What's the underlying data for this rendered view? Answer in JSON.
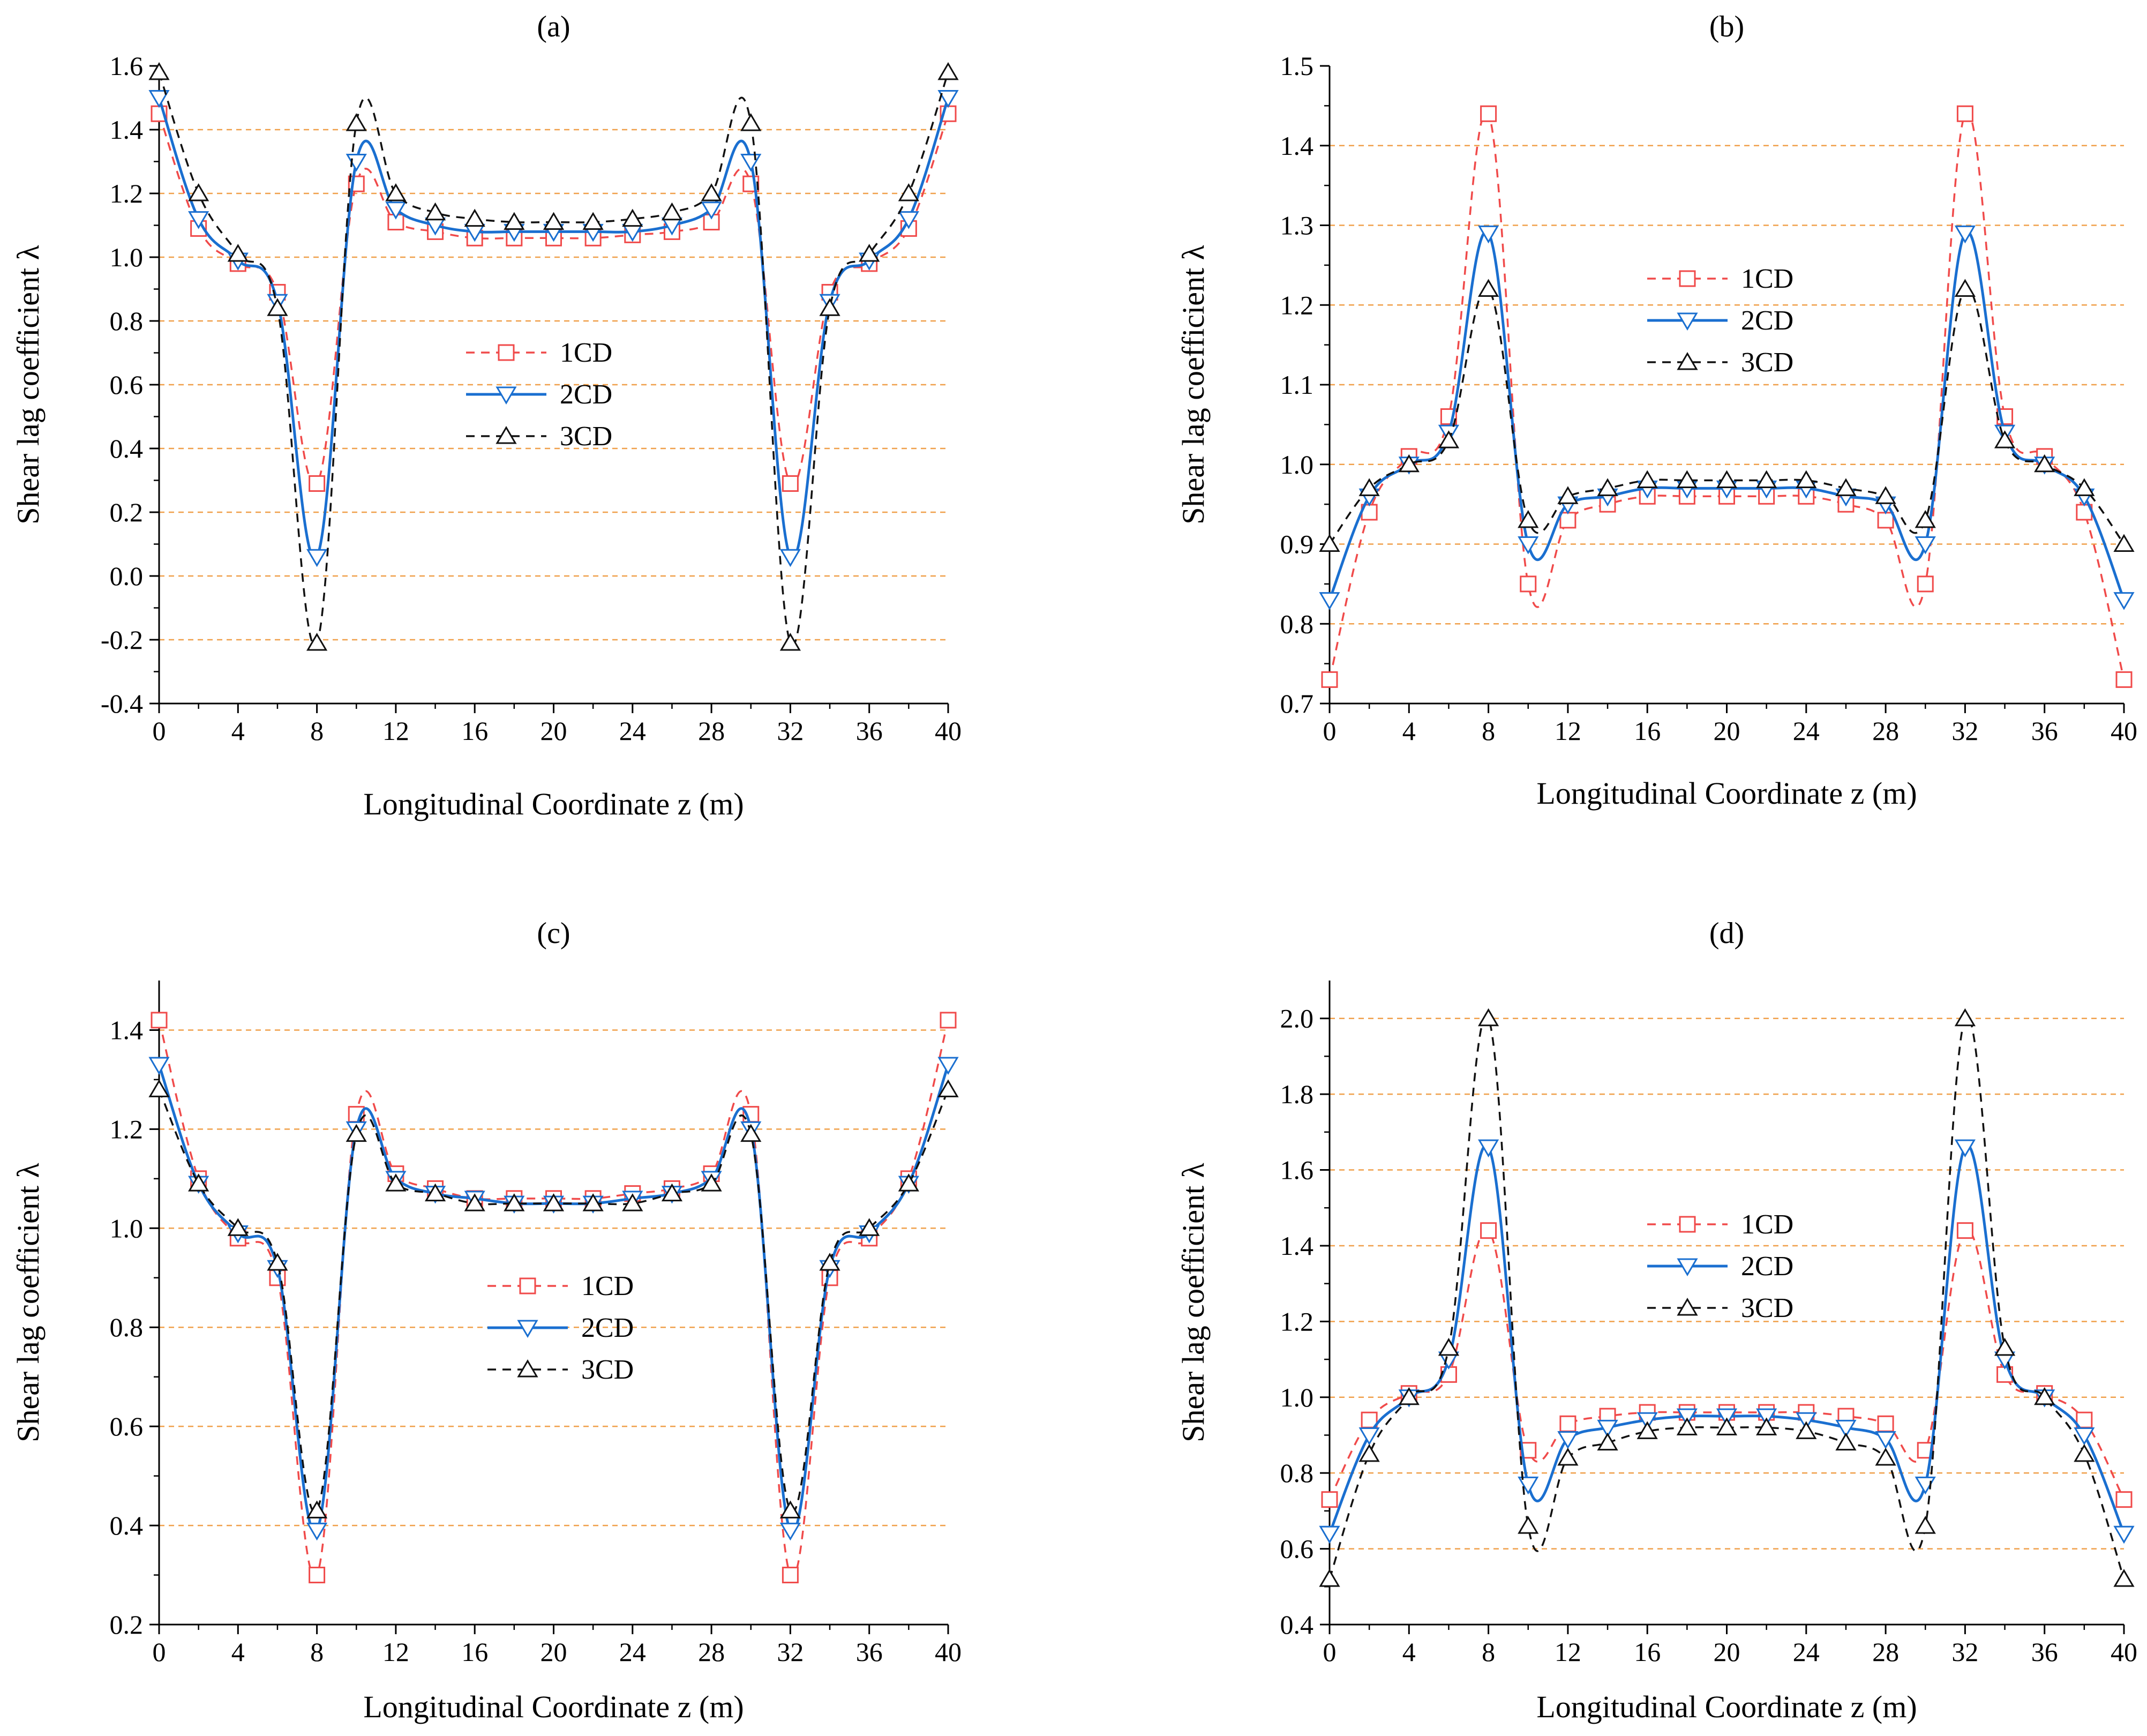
{
  "colors": {
    "grid": "#f0a04b",
    "1CD": "#f04a4a",
    "2CD": "#1a6fd0",
    "3CD": "#111111",
    "axis": "#000000"
  },
  "chart_data": [
    {
      "type": "line",
      "panel": "(a)",
      "title": "(a)",
      "xlabel": "Longitudinal Coordinate z (m)",
      "ylabel": "Shear lag coefficient λ",
      "xlim": [
        0,
        40
      ],
      "ylim": [
        -0.4,
        1.6
      ],
      "xticks": [
        0,
        4,
        8,
        12,
        16,
        20,
        24,
        28,
        32,
        36,
        40
      ],
      "yticks": [
        -0.4,
        -0.2,
        0.0,
        0.2,
        0.4,
        0.6,
        0.8,
        1.0,
        1.2,
        1.4,
        1.6
      ],
      "ytick_labels": [
        "-0.4",
        "-0.2",
        "0.0",
        "0.2",
        "0.4",
        "0.6",
        "0.8",
        "1.0",
        "1.2",
        "1.4",
        "1.6"
      ],
      "gridlines": [
        -0.2,
        0.0,
        0.2,
        0.4,
        0.6,
        0.8,
        1.0,
        1.2,
        1.4
      ],
      "legend_position": "center",
      "x": [
        0,
        2,
        4,
        6,
        8,
        10,
        12,
        14,
        16,
        18,
        20,
        22,
        24,
        26,
        28,
        30,
        32,
        34,
        36,
        38,
        40
      ],
      "series": [
        {
          "name": "1CD",
          "marker": "square",
          "style": "dashed",
          "values": [
            1.45,
            1.09,
            0.98,
            0.89,
            0.29,
            1.23,
            1.11,
            1.08,
            1.06,
            1.06,
            1.06,
            1.06,
            1.07,
            1.08,
            1.11,
            1.23,
            0.29,
            0.89,
            0.98,
            1.09,
            1.45
          ]
        },
        {
          "name": "2CD",
          "marker": "triangle-down",
          "style": "solid",
          "values": [
            1.5,
            1.12,
            0.99,
            0.86,
            0.06,
            1.3,
            1.15,
            1.1,
            1.08,
            1.08,
            1.08,
            1.08,
            1.08,
            1.1,
            1.15,
            1.3,
            0.06,
            0.86,
            0.99,
            1.12,
            1.5
          ]
        },
        {
          "name": "3CD",
          "marker": "triangle-up",
          "style": "dashed",
          "values": [
            1.58,
            1.2,
            1.01,
            0.84,
            -0.21,
            1.42,
            1.2,
            1.14,
            1.12,
            1.11,
            1.11,
            1.11,
            1.12,
            1.14,
            1.2,
            1.42,
            -0.21,
            0.84,
            1.01,
            1.2,
            1.58
          ]
        }
      ]
    },
    {
      "type": "line",
      "panel": "(b)",
      "title": "(b)",
      "xlabel": "Longitudinal Coordinate z (m)",
      "ylabel": "Shear lag coefficient λ",
      "xlim": [
        0,
        40
      ],
      "ylim": [
        0.7,
        1.5
      ],
      "xticks": [
        0,
        4,
        8,
        12,
        16,
        20,
        24,
        28,
        32,
        36,
        40
      ],
      "yticks": [
        0.7,
        0.8,
        0.9,
        1.0,
        1.1,
        1.2,
        1.3,
        1.4,
        1.5
      ],
      "ytick_labels": [
        "0.7",
        "0.8",
        "0.9",
        "1.0",
        "1.1",
        "1.2",
        "1.3",
        "1.4",
        "1.5"
      ],
      "gridlines": [
        0.8,
        0.9,
        1.0,
        1.1,
        1.2,
        1.3,
        1.4
      ],
      "legend_position": "upper-center",
      "x": [
        0,
        2,
        4,
        6,
        8,
        10,
        12,
        14,
        16,
        18,
        20,
        22,
        24,
        26,
        28,
        30,
        32,
        34,
        36,
        38,
        40
      ],
      "series": [
        {
          "name": "1CD",
          "marker": "square",
          "style": "dashed",
          "values": [
            0.73,
            0.94,
            1.01,
            1.06,
            1.44,
            0.85,
            0.93,
            0.95,
            0.96,
            0.96,
            0.96,
            0.96,
            0.96,
            0.95,
            0.93,
            0.85,
            1.44,
            1.06,
            1.01,
            0.94,
            0.73
          ]
        },
        {
          "name": "2CD",
          "marker": "triangle-down",
          "style": "solid",
          "values": [
            0.83,
            0.96,
            1.0,
            1.04,
            1.29,
            0.9,
            0.95,
            0.96,
            0.97,
            0.97,
            0.97,
            0.97,
            0.97,
            0.96,
            0.95,
            0.9,
            1.29,
            1.04,
            1.0,
            0.96,
            0.83
          ]
        },
        {
          "name": "3CD",
          "marker": "triangle-up",
          "style": "dashed",
          "values": [
            0.9,
            0.97,
            1.0,
            1.03,
            1.22,
            0.93,
            0.96,
            0.97,
            0.98,
            0.98,
            0.98,
            0.98,
            0.98,
            0.97,
            0.96,
            0.93,
            1.22,
            1.03,
            1.0,
            0.97,
            0.9
          ]
        }
      ]
    },
    {
      "type": "line",
      "panel": "(c)",
      "title": "(c)",
      "xlabel": "Longitudinal Coordinate z (m)",
      "ylabel": "Shear lag coefficient λ",
      "xlim": [
        0,
        40
      ],
      "ylim": [
        0.2,
        1.5
      ],
      "xticks": [
        0,
        4,
        8,
        12,
        16,
        20,
        24,
        28,
        32,
        36,
        40
      ],
      "yticks": [
        0.2,
        0.4,
        0.6,
        0.8,
        1.0,
        1.2,
        1.4
      ],
      "ytick_labels": [
        "0.2",
        "0.4",
        "0.6",
        "0.8",
        "1.0",
        "1.2",
        "1.4"
      ],
      "gridlines": [
        0.4,
        0.6,
        0.8,
        1.0,
        1.2,
        1.4
      ],
      "legend_position": "center",
      "x": [
        0,
        2,
        4,
        6,
        8,
        10,
        12,
        14,
        16,
        18,
        20,
        22,
        24,
        26,
        28,
        30,
        32,
        34,
        36,
        38,
        40
      ],
      "series": [
        {
          "name": "1CD",
          "marker": "square",
          "style": "dashed",
          "values": [
            1.42,
            1.1,
            0.98,
            0.9,
            0.3,
            1.23,
            1.11,
            1.08,
            1.06,
            1.06,
            1.06,
            1.06,
            1.07,
            1.08,
            1.11,
            1.23,
            0.3,
            0.9,
            0.98,
            1.1,
            1.42
          ]
        },
        {
          "name": "2CD",
          "marker": "triangle-down",
          "style": "solid",
          "values": [
            1.33,
            1.09,
            0.99,
            0.92,
            0.39,
            1.2,
            1.1,
            1.07,
            1.06,
            1.05,
            1.05,
            1.05,
            1.06,
            1.07,
            1.1,
            1.2,
            0.39,
            0.92,
            0.99,
            1.09,
            1.33
          ]
        },
        {
          "name": "3CD",
          "marker": "triangle-up",
          "style": "dashed",
          "values": [
            1.28,
            1.09,
            1.0,
            0.93,
            0.43,
            1.19,
            1.09,
            1.07,
            1.05,
            1.05,
            1.05,
            1.05,
            1.05,
            1.07,
            1.09,
            1.19,
            0.43,
            0.93,
            1.0,
            1.09,
            1.28
          ]
        }
      ]
    },
    {
      "type": "line",
      "panel": "(d)",
      "title": "(d)",
      "xlabel": "Longitudinal Coordinate z (m)",
      "ylabel": "Shear lag coefficient λ",
      "xlim": [
        0,
        40
      ],
      "ylim": [
        0.4,
        2.1
      ],
      "xticks": [
        0,
        4,
        8,
        12,
        16,
        20,
        24,
        28,
        32,
        36,
        40
      ],
      "yticks": [
        0.4,
        0.6,
        0.8,
        1.0,
        1.2,
        1.4,
        1.6,
        1.8,
        2.0
      ],
      "ytick_labels": [
        "0.4",
        "0.6",
        "0.8",
        "1.0",
        "1.2",
        "1.4",
        "1.6",
        "1.8",
        "2.0"
      ],
      "gridlines": [
        0.6,
        0.8,
        1.0,
        1.2,
        1.4,
        1.6,
        1.8,
        2.0
      ],
      "legend_position": "center",
      "x": [
        0,
        2,
        4,
        6,
        8,
        10,
        12,
        14,
        16,
        18,
        20,
        22,
        24,
        26,
        28,
        30,
        32,
        34,
        36,
        38,
        40
      ],
      "series": [
        {
          "name": "1CD",
          "marker": "square",
          "style": "dashed",
          "values": [
            0.73,
            0.94,
            1.01,
            1.06,
            1.44,
            0.86,
            0.93,
            0.95,
            0.96,
            0.96,
            0.96,
            0.96,
            0.96,
            0.95,
            0.93,
            0.86,
            1.44,
            1.06,
            1.01,
            0.94,
            0.73
          ]
        },
        {
          "name": "2CD",
          "marker": "triangle-down",
          "style": "solid",
          "values": [
            0.64,
            0.9,
            1.0,
            1.1,
            1.66,
            0.77,
            0.89,
            0.92,
            0.94,
            0.95,
            0.95,
            0.95,
            0.94,
            0.92,
            0.89,
            0.77,
            1.66,
            1.1,
            1.0,
            0.9,
            0.64
          ]
        },
        {
          "name": "3CD",
          "marker": "triangle-up",
          "style": "dashed",
          "values": [
            0.52,
            0.85,
            1.0,
            1.13,
            2.0,
            0.66,
            0.84,
            0.88,
            0.91,
            0.92,
            0.92,
            0.92,
            0.91,
            0.88,
            0.84,
            0.66,
            2.0,
            1.13,
            1.0,
            0.85,
            0.52
          ]
        }
      ]
    }
  ]
}
